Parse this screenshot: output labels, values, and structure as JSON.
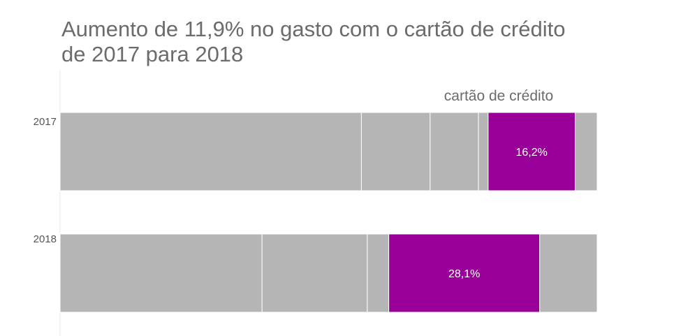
{
  "chart_data": {
    "type": "bar",
    "orientation": "horizontal",
    "stacked": true,
    "title": "Aumento de 11,9% no gasto com o cartão de crédito\nde 2017 para 2018",
    "annotation": "cartão de crédito",
    "categories": [
      "2017",
      "2018"
    ],
    "series": [
      {
        "values": [
          56.1,
          37.6
        ],
        "color": "#b5b5b5"
      },
      {
        "values": [
          12.8,
          19.6
        ],
        "color": "#b5b5b5"
      },
      {
        "values": [
          9.0,
          4.0
        ],
        "color": "#b5b5b5"
      },
      {
        "values": [
          1.8,
          0.0
        ],
        "color": "#b5b5b5"
      },
      {
        "name": "cartão de crédito",
        "values": [
          16.2,
          28.1
        ],
        "labels": [
          "16,2%",
          "28,1%"
        ],
        "color": "#990099"
      },
      {
        "values": [
          4.1,
          10.7
        ],
        "color": "#b5b5b5"
      }
    ],
    "xlim": [
      0,
      100
    ],
    "grid": false,
    "legend": "none"
  }
}
